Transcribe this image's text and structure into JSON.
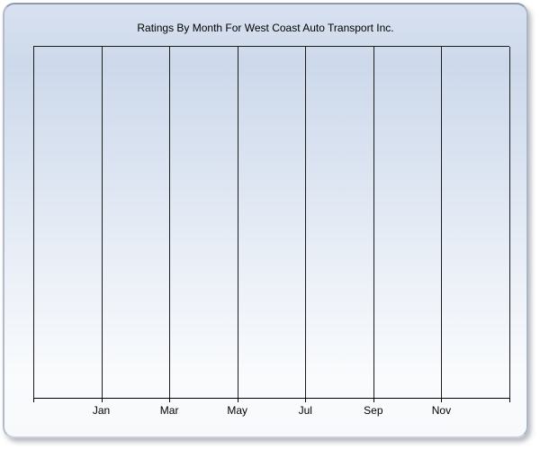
{
  "window": {
    "title": "Ratings By Month For West Coast Auto Transport Inc."
  },
  "chart_data": {
    "type": "line",
    "title": "Ratings By Month For West Coast Auto Transport Inc.",
    "categories": [
      "Jan",
      "Mar",
      "May",
      "Jul",
      "Sep",
      "Nov"
    ],
    "series": [],
    "xlabel": "",
    "ylabel": "",
    "y_tick_labels": [],
    "x_gridline_count": 8,
    "grid": "vertical-only",
    "legend": "none",
    "plot_empty": true
  },
  "colors": {
    "panel_gradient_top": "#cdd9eb",
    "panel_gradient_bottom": "#f9fbfd",
    "panel_border": "#8e9cb0",
    "gridline": "#1c1c1c",
    "axis": "#000000",
    "text": "#000000",
    "page_background": "#ffffff"
  }
}
